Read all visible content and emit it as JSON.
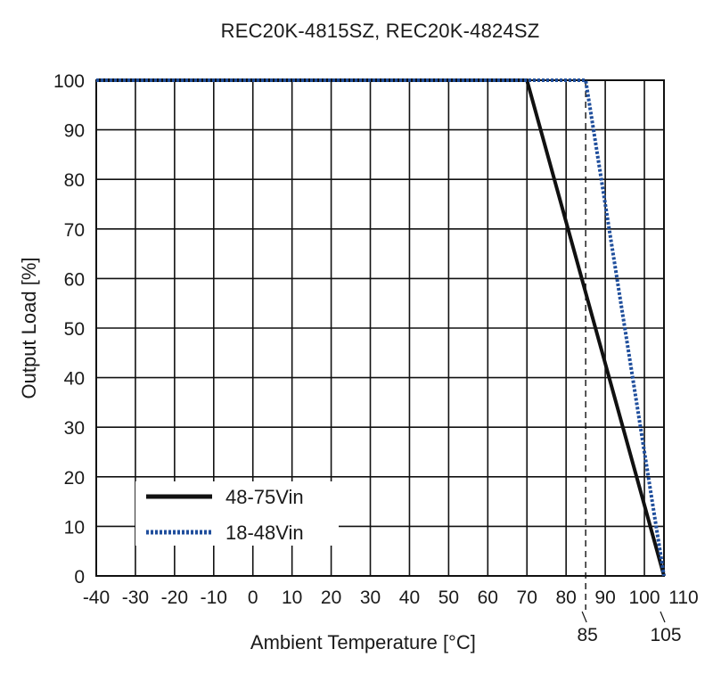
{
  "chart_data": {
    "type": "line",
    "title": "REC20K-4815SZ, REC20K-4824SZ",
    "xlabel": "Ambient Temperature [°C]",
    "ylabel": "Output Load [%]",
    "xlim": [
      -40,
      105
    ],
    "ylim": [
      0,
      100
    ],
    "xticks": [
      -40,
      -30,
      -20,
      -10,
      0,
      10,
      20,
      30,
      40,
      50,
      60,
      70,
      80,
      90,
      100,
      110
    ],
    "yticks": [
      0,
      10,
      20,
      30,
      40,
      50,
      60,
      70,
      80,
      90,
      100
    ],
    "extra_xticks": [
      85,
      105
    ],
    "grid": true,
    "legend_position": "bottom-left",
    "reference_lines": [
      {
        "axis": "x",
        "value": 85,
        "style": "dashed"
      }
    ],
    "series": [
      {
        "name": "48-75Vin",
        "color": "#111111",
        "style": "solid",
        "x": [
          -40,
          70,
          105
        ],
        "y": [
          100,
          100,
          0
        ]
      },
      {
        "name": "18-48Vin",
        "color": "#1f4e9c",
        "style": "dotted",
        "x": [
          -40,
          85,
          105
        ],
        "y": [
          100,
          100,
          0
        ]
      }
    ]
  }
}
